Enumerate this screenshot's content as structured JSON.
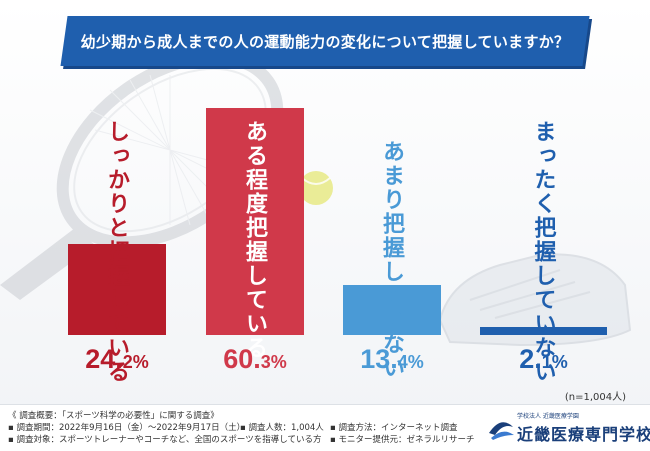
{
  "title": "幼少期から成人までの人の運動能力の変化について把握していますか？",
  "chart_data": {
    "type": "bar",
    "categories": [
      "しっかりと把握している",
      "ある程度把握している",
      "あまり把握していない",
      "まったく把握していない"
    ],
    "values": [
      24.2,
      60.3,
      13.4,
      2.1
    ],
    "value_labels": [
      {
        "main": "24.",
        "sub": "2%"
      },
      {
        "main": "60.",
        "sub": "3%"
      },
      {
        "main": "13.",
        "sub": "4%"
      },
      {
        "main": "2.",
        "sub": "1%"
      }
    ],
    "colors": [
      "#b71c2b",
      "#d0394a",
      "#4a9ad6",
      "#1f5fae"
    ],
    "ylim": [
      0,
      60.3
    ]
  },
  "sample_note": "(n=1,004人)",
  "footer": {
    "overview": "《 調査概要：「スポーツ科学の必要性」に関する調査》",
    "period": "▪ 調査期間：2022年9月16日（金）～2022年9月17日（土）",
    "respondents": "▪ 調査人数：1,004人",
    "method": "▪ 調査方法：インターネット調査",
    "target": "▪ 調査対象：スポーツトレーナーやコーチなど、全国のスポーツを指導している方",
    "monitor": "▪ モニター提供元：ゼネラルリサーチ"
  },
  "logo": {
    "sub": "学校法人 近畿医療学園",
    "name": "近畿医療専門学校"
  }
}
